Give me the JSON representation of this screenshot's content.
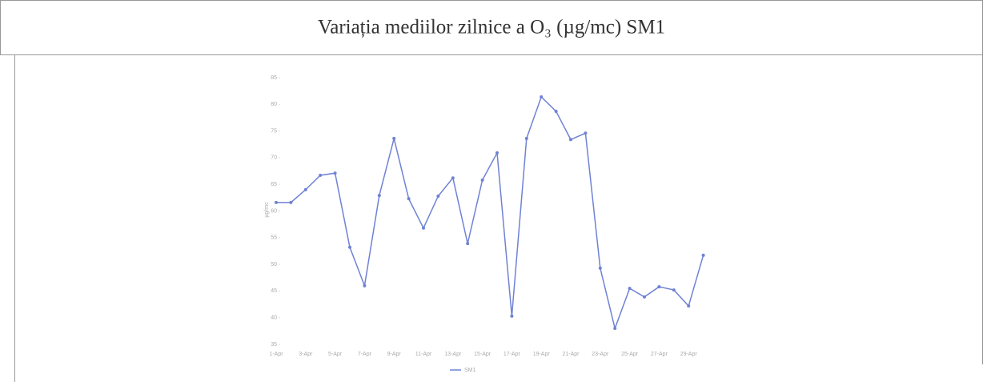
{
  "header": {
    "title": "Variația mediilor zilnice a O₃ (µg/mc) SM1"
  },
  "chart_data": {
    "type": "line",
    "y_label": "µg/mc",
    "categories": [
      "1-Apr",
      null,
      "3-Apr",
      null,
      "5-Apr",
      null,
      "7-Apr",
      null,
      "9-Apr",
      null,
      "11-Apr",
      null,
      "13-Apr",
      null,
      "15-Apr",
      null,
      "17-Apr",
      null,
      "19-Apr",
      null,
      "21-Apr",
      null,
      "23-Apr",
      null,
      "25-Apr",
      null,
      "27-Apr",
      null,
      "29-Apr",
      null
    ],
    "series": [
      {
        "name": "SM1",
        "color": "#6f82d4",
        "values": [
          61.6,
          61.6,
          64.0,
          66.7,
          67.1,
          53.2,
          46.0,
          62.9,
          73.6,
          62.3,
          56.8,
          62.8,
          66.2,
          53.9,
          65.8,
          70.9,
          40.3,
          73.6,
          81.4,
          78.7,
          73.4,
          74.6,
          49.3,
          38.0,
          45.5,
          43.9,
          45.8,
          45.2,
          42.2,
          51.7
        ]
      }
    ],
    "ylim": [
      35,
      85
    ],
    "yticks": [
      35,
      40,
      45,
      50,
      55,
      60,
      65,
      70,
      75,
      80,
      85
    ],
    "grid": false
  }
}
